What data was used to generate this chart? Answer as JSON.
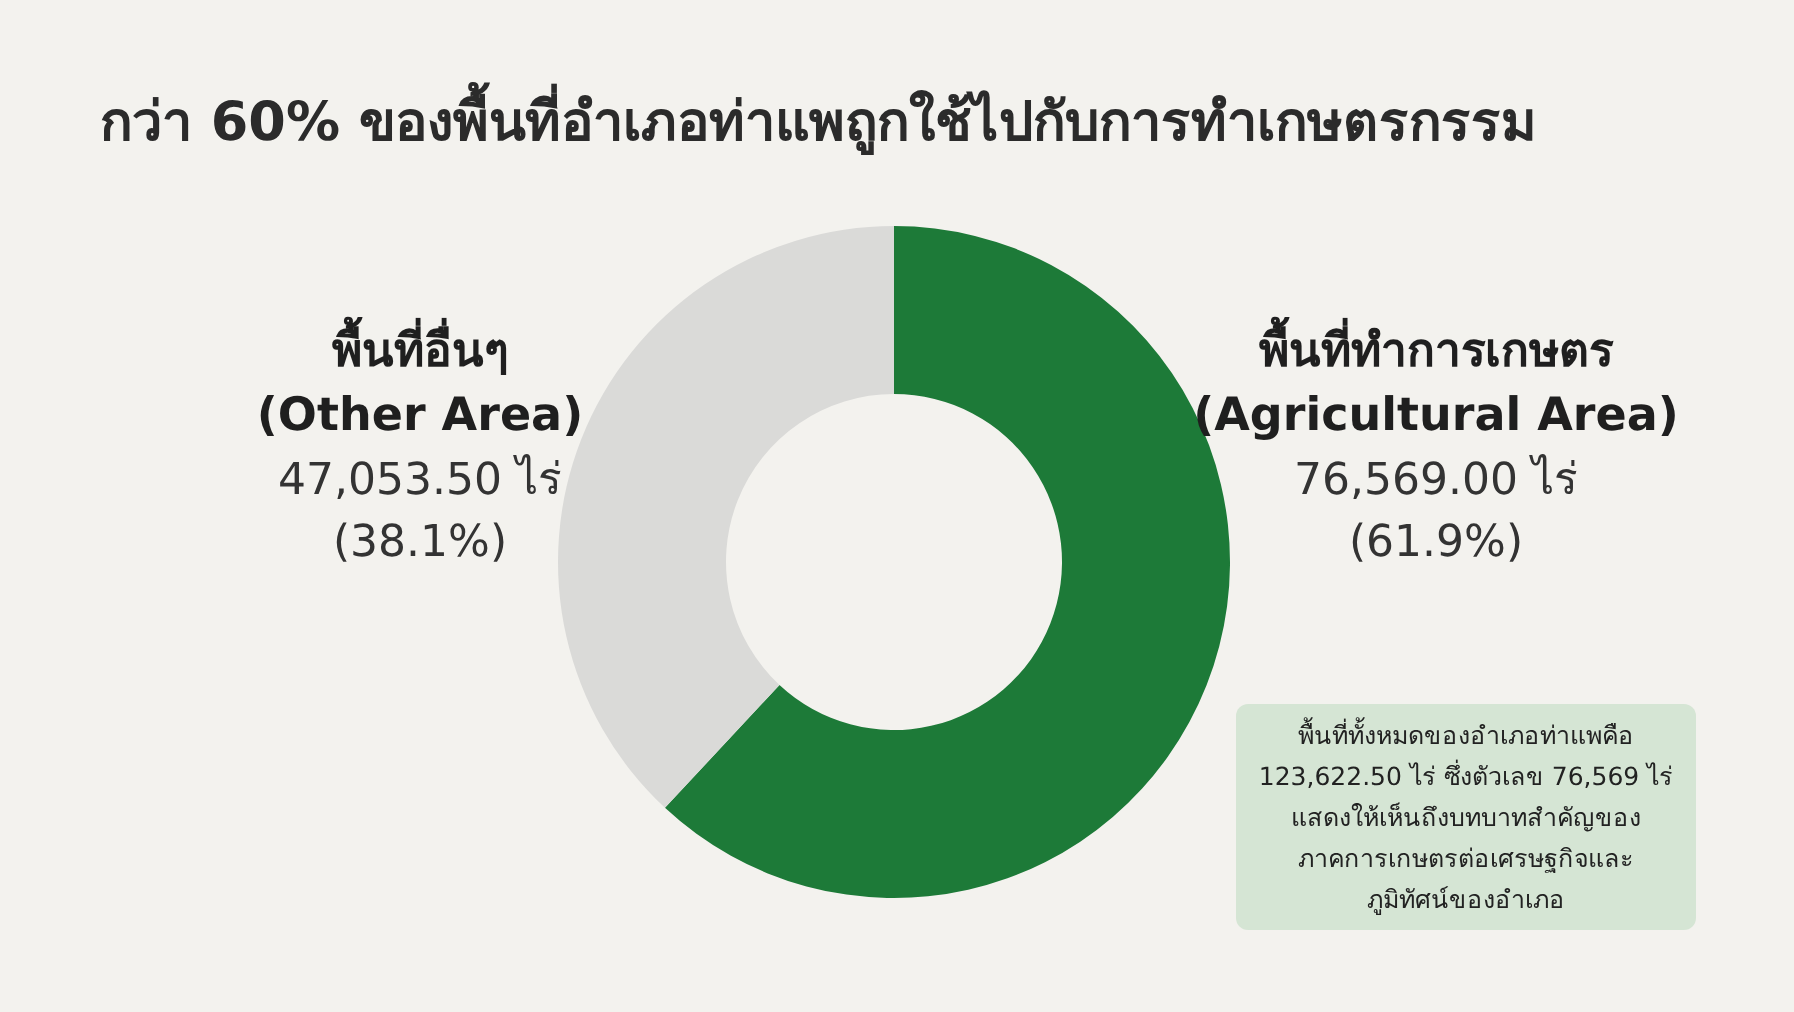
{
  "chart_data": {
    "type": "donut",
    "title": "กว่า 60% ของพื้นที่อำเภอท่าแพถูกใช้ไปกับการทำเกษตรกรรม",
    "categories": [
      "พื้นที่ทำการเกษตร\n(Agricultural Area)",
      "พื้นที่อื่นๆ\n(Other Area)"
    ],
    "values": [
      76569.0,
      47053.5
    ],
    "colors": [
      "#1d7a38",
      "#dadad8"
    ],
    "value_labels": [
      "76,569.00 ไร่\n(61.9%)",
      "47,053.50 ไร่\n(38.1%)"
    ],
    "annotations": [
      "พื้นที่ทั้งหมดของอำเภอท่าแพคือ\n123,622.50 ไร่ ซึ่งตัวเลข 76,569 ไร่\nแสดงให้เห็นถึงบทบาทสำคัญของ\nภาคการเกษตรต่อเศรษฐกิจและ\nภูมิทัศน์ของอำเภอ"
    ]
  }
}
